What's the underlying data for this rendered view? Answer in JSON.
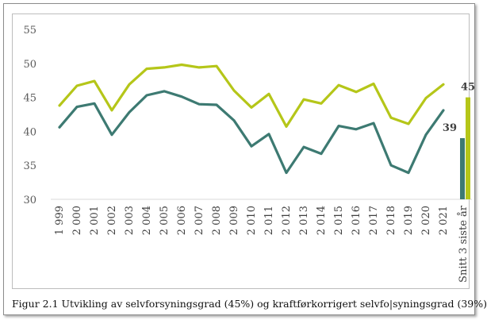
{
  "caption": "Figur 2.1 Utvikling av selvforsyningsgrad (45%) og kraftførkorrigert selvfo|syningsgrad (39%)",
  "chart_data": {
    "type": "line",
    "title": "",
    "xlabel": "",
    "ylabel": "",
    "ylim": [
      30,
      55
    ],
    "yticks": [
      30,
      35,
      40,
      45,
      50,
      55
    ],
    "grid": false,
    "legend": "none",
    "categories": [
      "1 999",
      "2 000",
      "2 001",
      "2 002",
      "2 003",
      "2 004",
      "2 005",
      "2 006",
      "2 007",
      "2 008",
      "2 009",
      "2 010",
      "2 011",
      "2 012",
      "2 013",
      "2 014",
      "2 015",
      "2 016",
      "2 017",
      "2 018",
      "2 019",
      "2 020",
      "2 021"
    ],
    "series": [
      {
        "color": "#b5c619",
        "values": [
          43.8,
          46.7,
          47.4,
          43.1,
          46.9,
          49.2,
          49.4,
          49.8,
          49.4,
          49.6,
          46.0,
          43.5,
          45.5,
          40.7,
          44.7,
          44.1,
          46.8,
          45.8,
          47.0,
          42.0,
          41.1,
          44.9,
          46.9
        ]
      },
      {
        "color": "#3d7a72",
        "values": [
          40.6,
          43.6,
          44.1,
          39.5,
          42.8,
          45.3,
          45.9,
          45.1,
          44.0,
          43.9,
          41.6,
          37.8,
          39.6,
          33.9,
          37.7,
          36.7,
          40.8,
          40.3,
          41.2,
          35.0,
          33.9,
          39.5,
          43.1
        ]
      }
    ],
    "summary_bars": {
      "label": "Snitt 3 siste år",
      "bars": [
        {
          "value": 39,
          "label": "39",
          "color": "#3d7a72"
        },
        {
          "value": 45,
          "label": "45",
          "color": "#b5c619"
        }
      ]
    }
  }
}
